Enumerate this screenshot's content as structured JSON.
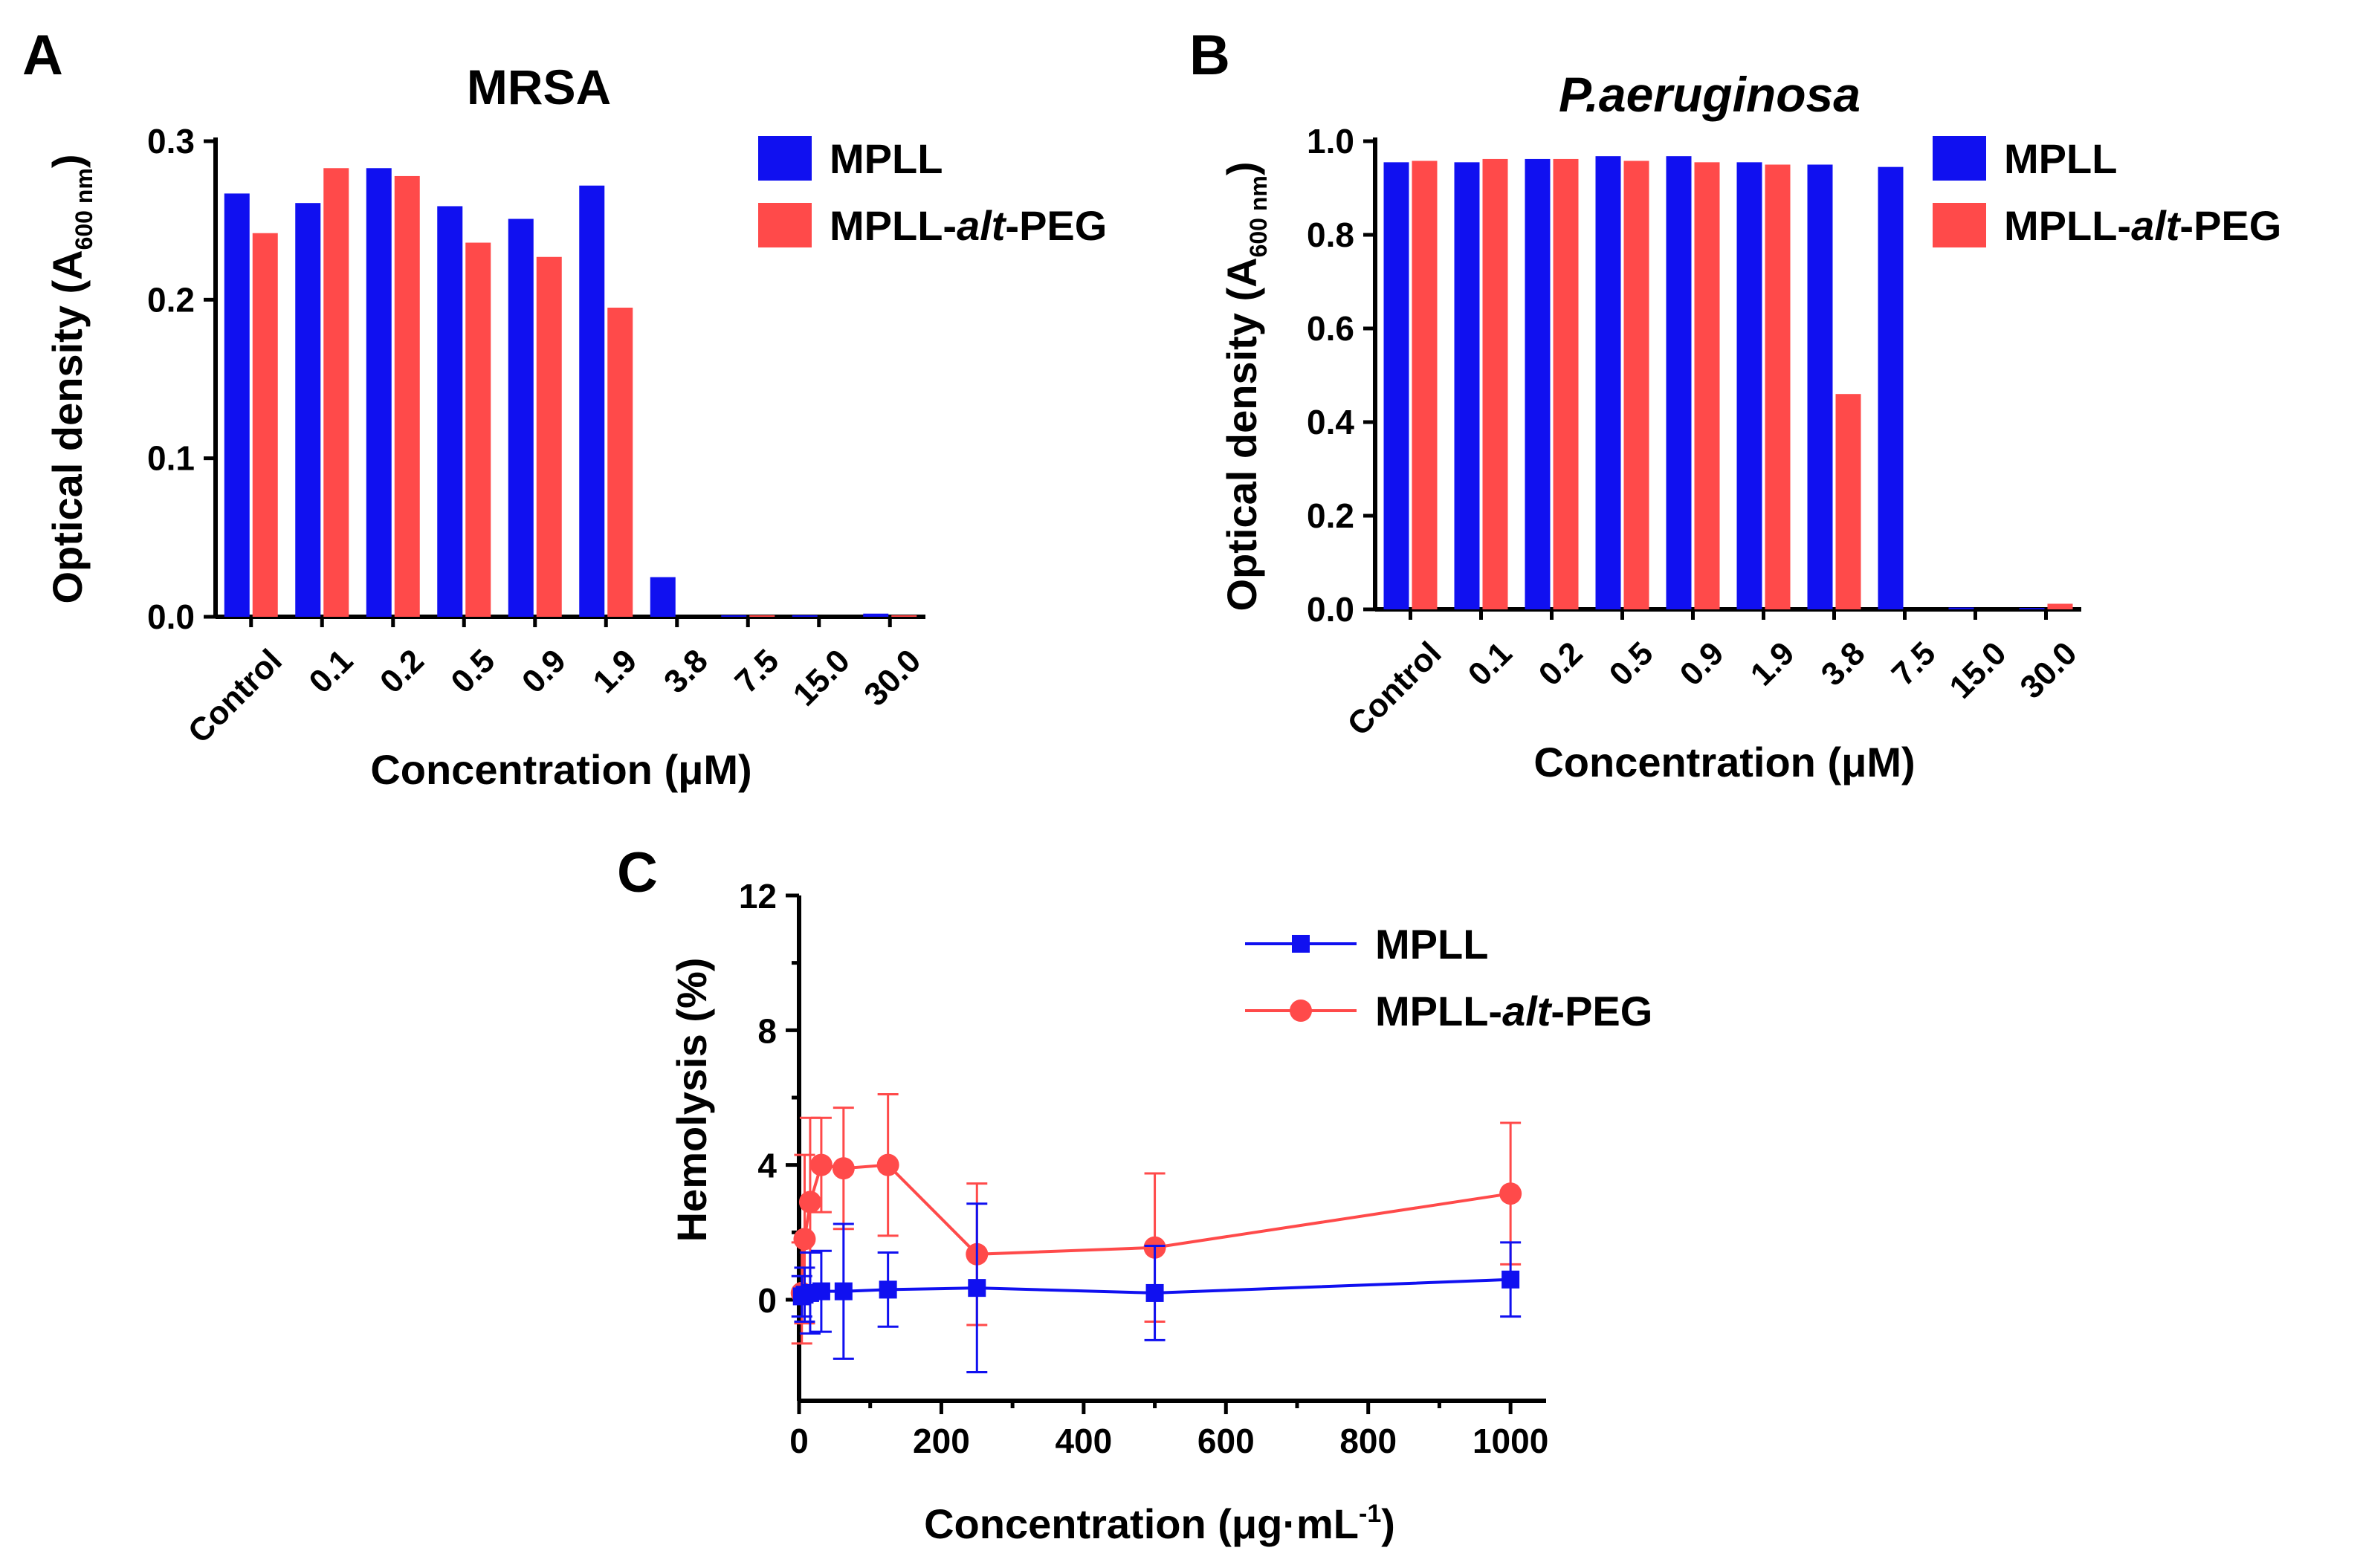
{
  "colors": {
    "mpll": "#1010f0",
    "mpll_alt_peg": "#ff4a4a",
    "axis": "#000000"
  },
  "chart_data": [
    {
      "panel": "A",
      "type": "bar",
      "title": "MRSA",
      "xlabel": "Concentration (μM)",
      "ylabel": {
        "main": "Optical density (A",
        "sub": "600 nm",
        "close": ")"
      },
      "ylim": [
        0,
        0.3
      ],
      "yticks": [
        "0.0",
        "0.1",
        "0.2",
        "0.3"
      ],
      "categories": [
        "Control",
        "0.1",
        "0.2",
        "0.5",
        "0.9",
        "1.9",
        "3.8",
        "7.5",
        "15.0",
        "30.0"
      ],
      "series": [
        {
          "name": "MPLL",
          "legend_parts": [
            "MPLL",
            "",
            ""
          ],
          "values": [
            0.267,
            0.261,
            0.283,
            0.259,
            0.251,
            0.272,
            0.025,
            0.001,
            0.001,
            0.002
          ]
        },
        {
          "name": "MPLL-alt-PEG",
          "legend_parts": [
            "MPLL-",
            "alt",
            "-PEG"
          ],
          "values": [
            0.242,
            0.283,
            0.278,
            0.236,
            0.227,
            0.195,
            0.0,
            0.001,
            0.0,
            0.001
          ]
        }
      ]
    },
    {
      "panel": "B",
      "type": "bar",
      "title": "P.aeruginosa",
      "xlabel": "Concentration (μM)",
      "ylabel": {
        "main": "Optical density (A",
        "sub": "600 nm",
        "close": ")"
      },
      "ylim": [
        0,
        1.0
      ],
      "yticks": [
        "0.0",
        "0.2",
        "0.4",
        "0.6",
        "0.8",
        "1.0"
      ],
      "categories": [
        "Control",
        "0.1",
        "0.2",
        "0.5",
        "0.9",
        "1.9",
        "3.8",
        "7.5",
        "15.0",
        "30.0"
      ],
      "series": [
        {
          "name": "MPLL",
          "legend_parts": [
            "MPLL",
            "",
            ""
          ],
          "values": [
            0.955,
            0.955,
            0.962,
            0.968,
            0.968,
            0.955,
            0.95,
            0.945,
            0.004,
            0.003
          ]
        },
        {
          "name": "MPLL-alt-PEG",
          "legend_parts": [
            "MPLL-",
            "alt",
            "-PEG"
          ],
          "values": [
            0.958,
            0.962,
            0.962,
            0.958,
            0.955,
            0.95,
            0.46,
            0.0,
            0.0,
            0.012
          ]
        }
      ]
    },
    {
      "panel": "C",
      "type": "line",
      "title": "",
      "xlabel": {
        "main": "Concentration (μg·mL",
        "sup": "-1",
        "close": ")"
      },
      "ylabel": "Hemolysis (%)",
      "xlim": [
        0,
        1050
      ],
      "ylim": [
        -3,
        12
      ],
      "xticks": [
        0,
        200,
        400,
        600,
        800,
        1000
      ],
      "yticks": [
        0,
        4,
        8,
        12
      ],
      "series": [
        {
          "name": "MPLL",
          "legend_parts": [
            "MPLL",
            "",
            ""
          ],
          "marker": "square",
          "x": [
            3.9,
            7.8,
            15.6,
            31.25,
            62.5,
            125,
            250,
            500,
            1000
          ],
          "y": [
            0.1,
            0.15,
            0.2,
            0.25,
            0.25,
            0.3,
            0.35,
            0.2,
            0.6
          ],
          "err": [
            0.6,
            0.8,
            1.2,
            1.2,
            2.0,
            1.1,
            2.5,
            1.4,
            1.1
          ]
        },
        {
          "name": "MPLL-alt-PEG",
          "legend_parts": [
            "MPLL-",
            "alt",
            "-PEG"
          ],
          "marker": "circle",
          "x": [
            3.9,
            7.8,
            15.6,
            31.25,
            62.5,
            125,
            250,
            500,
            1000
          ],
          "y": [
            0.2,
            1.8,
            2.9,
            4.0,
            3.9,
            4.0,
            1.35,
            1.55,
            3.15
          ],
          "err": [
            1.5,
            2.5,
            2.5,
            1.4,
            1.8,
            2.1,
            2.1,
            2.2,
            2.1
          ]
        }
      ]
    }
  ]
}
